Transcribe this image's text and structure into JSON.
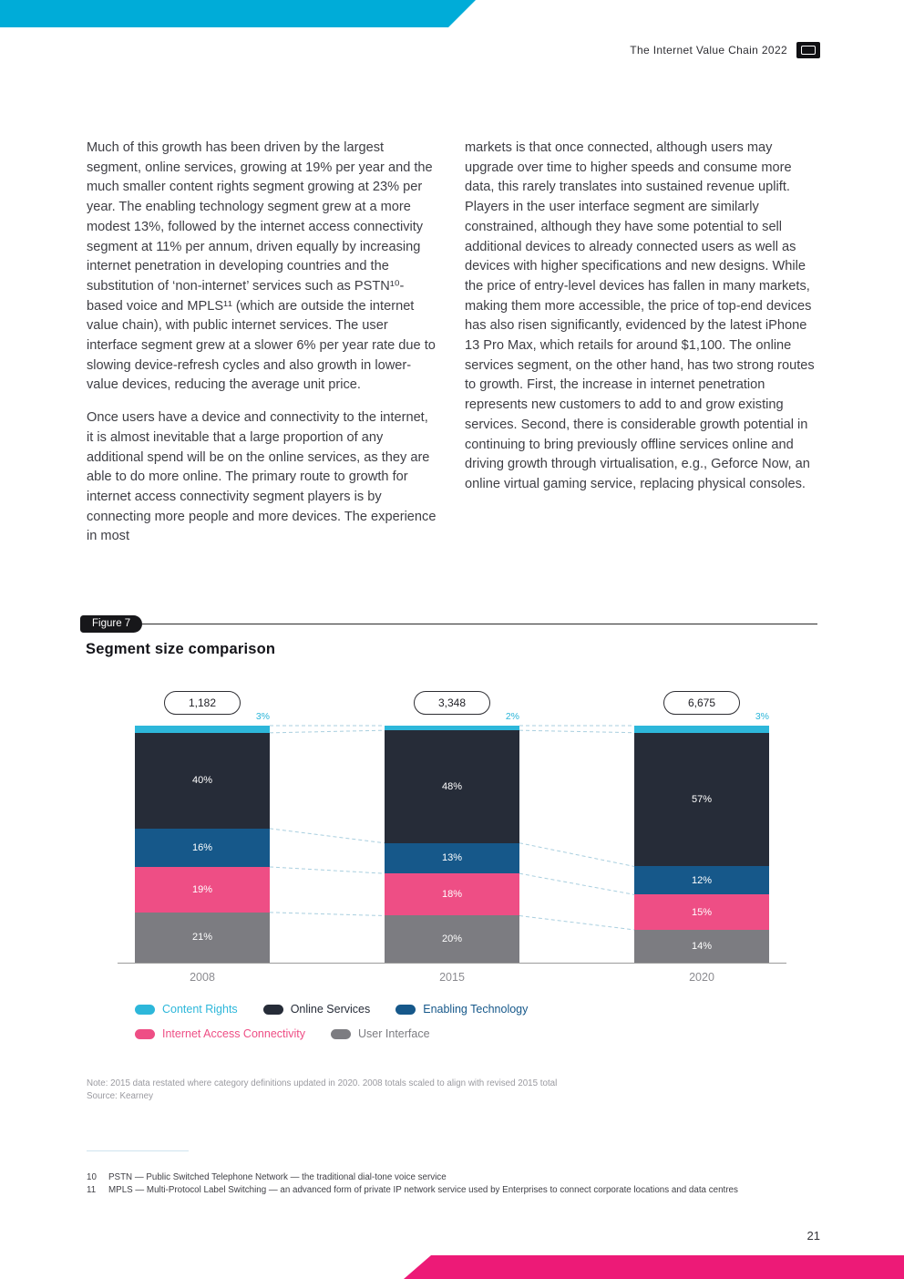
{
  "header": {
    "title": "The Internet Value Chain 2022"
  },
  "page": {
    "number": "21"
  },
  "article": {
    "left_p1": "Much of this growth has been driven by the largest segment, online services, growing at 19% per year and the much smaller content rights segment growing at 23% per year. The enabling technology segment grew at a more modest 13%, followed by the internet access connectivity segment at 11% per annum, driven equally by increasing internet penetration in developing countries and the substitution of ‘non-internet’ services such as PSTN¹⁰-based voice and MPLS¹¹ (which are outside the internet value chain), with public internet services. The user interface segment grew at a slower 6% per year rate due to slowing device-refresh cycles and also growth in lower-value devices, reducing the average unit price.",
    "left_p2": "Once users have a device and connectivity to the internet, it is almost inevitable that a large proportion of any additional spend will be on the online services, as they are able to do more online. The primary route to growth for internet access connectivity segment players is by connecting more people and more devices. The experience in most",
    "right_p1": "markets is that once connected, although users may upgrade over time to higher speeds and consume more data, this rarely translates into sustained revenue uplift. Players in the user interface segment are similarly constrained, although they have some potential to sell additional devices to already connected users as well as devices with higher specifications and new designs. While the price of entry-level devices has fallen in many markets, making them more accessible, the price of top-end devices has also risen significantly, evidenced by the latest iPhone 13 Pro Max, which retails for around $1,100. The online services segment, on the other hand, has two strong routes to growth. First, the increase in internet penetration represents new customers to add to and grow existing services. Second, there is considerable growth potential in continuing to bring previously offline services online and driving growth through virtualisation, e.g., Geforce Now, an online virtual gaming service, replacing physical consoles."
  },
  "figure": {
    "tag": "Figure 7",
    "note": "Note: 2015 data restated where category definitions updated in 2020. 2008 totals scaled to align with revised 2015 total",
    "source": "Source: Kearney"
  },
  "chart_data": {
    "type": "bar",
    "stacked": true,
    "title": "Segment size comparison",
    "categories": [
      "2008",
      "2015",
      "2020"
    ],
    "totals": [
      "1,182",
      "3,348",
      "6,675"
    ],
    "top_labels": [
      "3%",
      "2%",
      "3%"
    ],
    "series": [
      {
        "name": "Content Rights",
        "color": "#2db7da",
        "values": [
          3,
          2,
          3
        ]
      },
      {
        "name": "Online Services",
        "color": "#262c38",
        "values": [
          40,
          48,
          57
        ]
      },
      {
        "name": "Enabling Technology",
        "color": "#16588a",
        "values": [
          16,
          13,
          12
        ]
      },
      {
        "name": "Internet Access Connectivity",
        "color": "#ee4e85",
        "values": [
          19,
          18,
          15
        ]
      },
      {
        "name": "User Interface",
        "color": "#7c7c81",
        "values": [
          21,
          20,
          14
        ]
      }
    ],
    "legend_rows": [
      [
        0,
        1,
        2
      ],
      [
        3,
        4
      ]
    ],
    "legend_position": "bottom",
    "grid": false,
    "ylim": [
      0,
      100
    ]
  },
  "footnotes": [
    {
      "num": "10",
      "text": "PSTN — Public Switched Telephone Network — the traditional dial-tone voice service"
    },
    {
      "num": "11",
      "text": "MPLS — Multi-Protocol Label Switching — an advanced form of private IP network service used by Enterprises to connect corporate locations and data centres"
    }
  ]
}
